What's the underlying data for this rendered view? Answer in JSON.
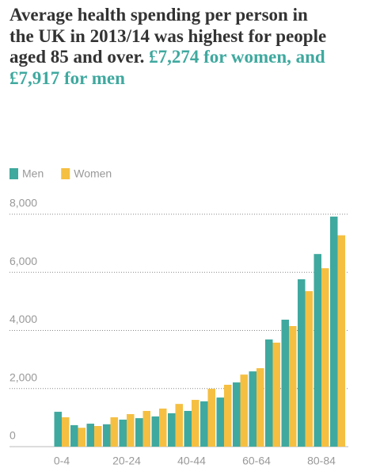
{
  "chart_data": {
    "type": "bar",
    "title": "Average health spending per person in the UK in 2013/14 was highest for people aged 85 and over.",
    "title_highlight": "£7,274 for women, and £7,917 for men",
    "categories": [
      "0-4",
      null,
      null,
      null,
      "20-24",
      null,
      null,
      null,
      "40-44",
      null,
      null,
      null,
      "60-64",
      null,
      null,
      null,
      "80-84",
      null
    ],
    "series": [
      {
        "name": "Men",
        "color": "#3fa99f",
        "values": [
          1200,
          740,
          790,
          770,
          930,
          980,
          1040,
          1150,
          1230,
          1560,
          1690,
          2210,
          2590,
          3690,
          4370,
          5760,
          6630,
          7917
        ]
      },
      {
        "name": "Women",
        "color": "#f5bf42",
        "values": [
          1010,
          650,
          710,
          1010,
          1120,
          1230,
          1310,
          1470,
          1610,
          1990,
          2130,
          2480,
          2700,
          3580,
          4150,
          5350,
          6140,
          7274
        ]
      }
    ],
    "ylim": [
      0,
      8000
    ],
    "yticks": [
      0,
      {
        "value": 2000,
        "label": "2,000"
      },
      {
        "value": 4000,
        "label": "4,000"
      },
      {
        "value": 6000,
        "label": "6,000"
      },
      {
        "value": 8000,
        "label": "8,000"
      }
    ],
    "grid": true,
    "legend": "top-left"
  }
}
